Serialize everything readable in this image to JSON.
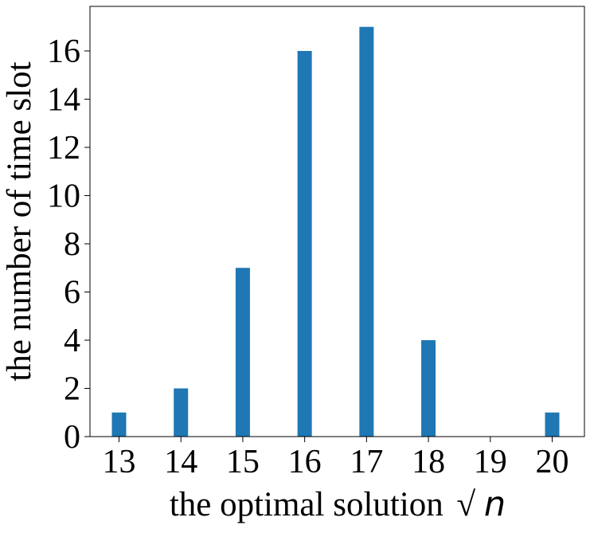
{
  "chart_data": {
    "type": "bar",
    "categories": [
      "13",
      "14",
      "15",
      "16",
      "17",
      "18",
      "19",
      "20"
    ],
    "values": [
      1,
      2,
      7,
      16,
      17,
      4,
      0,
      1
    ],
    "title": "",
    "xlabel": "the optimal solution √n",
    "xlabel_text": "the optimal solution",
    "xlabel_math": "n",
    "ylabel": "the number of time slot",
    "yticks": [
      0,
      2,
      4,
      6,
      8,
      10,
      12,
      14,
      16
    ],
    "ylim": [
      0,
      17.85
    ],
    "bar_color": "#1f77b4",
    "grid": false,
    "legend": "none"
  }
}
